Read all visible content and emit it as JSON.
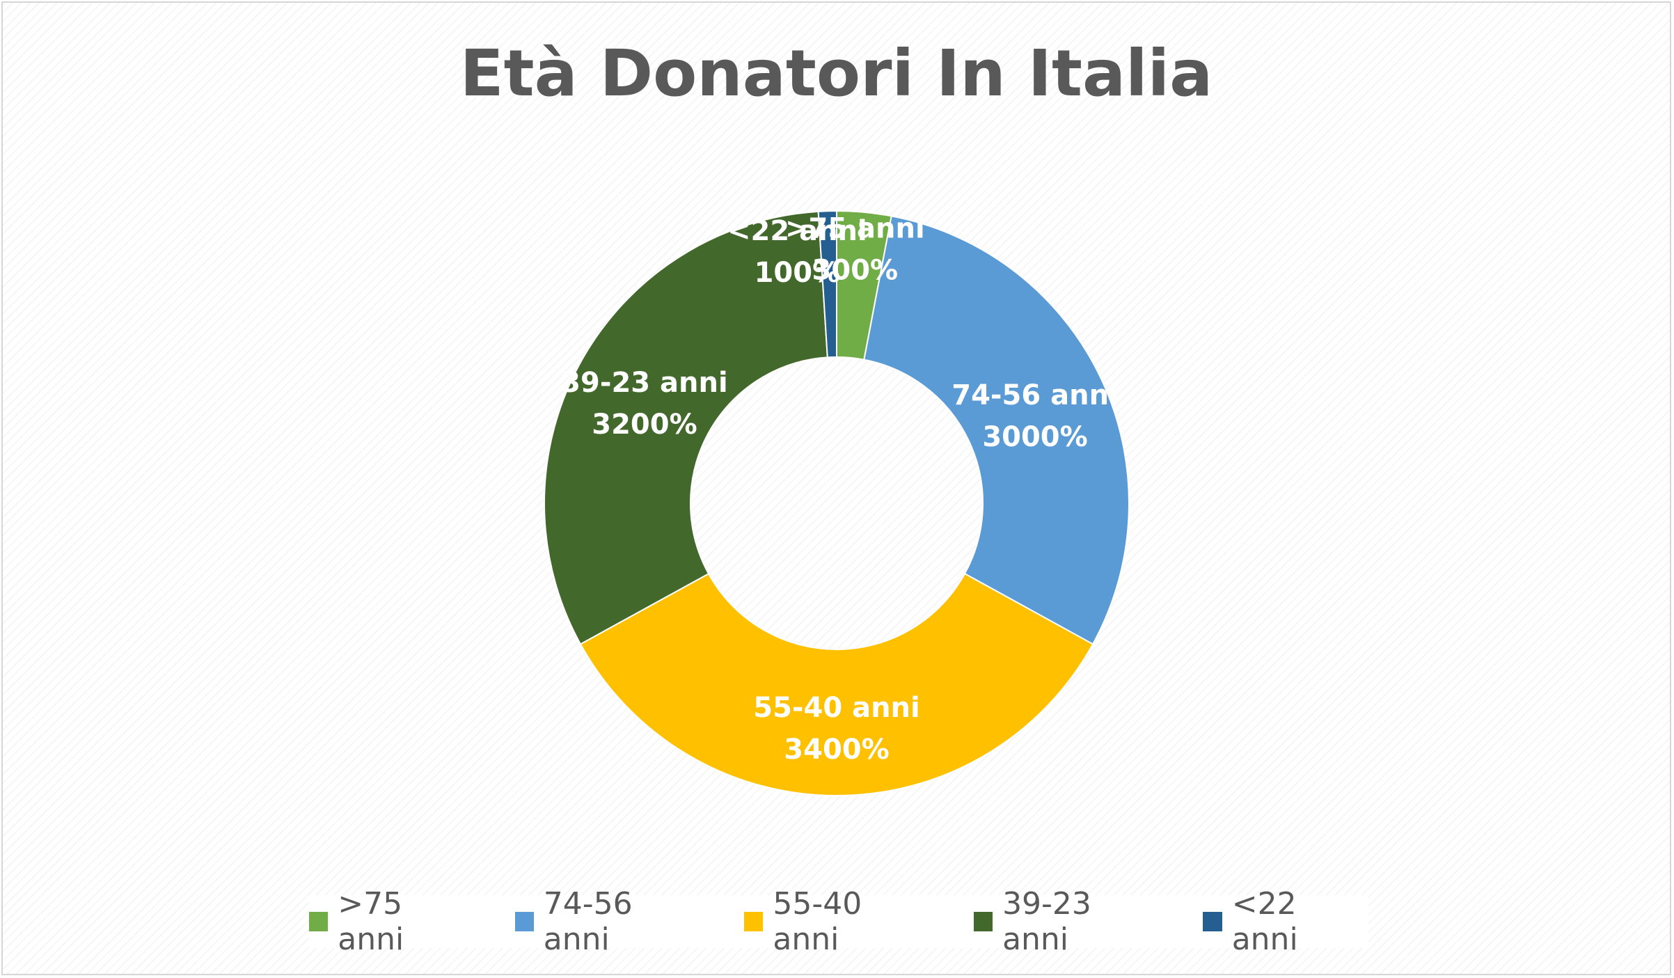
{
  "chart_data": {
    "type": "pie",
    "style": "donut",
    "title": "Età Donatori In Italia",
    "categories": [
      ">75 anni",
      "74-56 anni",
      "55-40 anni",
      "39-23 anni",
      "<22 anni"
    ],
    "values": [
      3,
      30,
      34,
      32,
      1
    ],
    "data_labels": [
      {
        "category": ">75 anni",
        "value": "300%"
      },
      {
        "category": "74-56 anni",
        "value": "3000%"
      },
      {
        "category": "55-40 anni",
        "value": "3400%"
      },
      {
        "category": "39-23 anni",
        "value": "3200%"
      },
      {
        "category": "<22 anni",
        "value": "100%"
      }
    ],
    "colors": [
      "#70ad47",
      "#5b9bd5",
      "#ffc000",
      "#43682b",
      "#255e91"
    ],
    "legend_position": "bottom"
  }
}
